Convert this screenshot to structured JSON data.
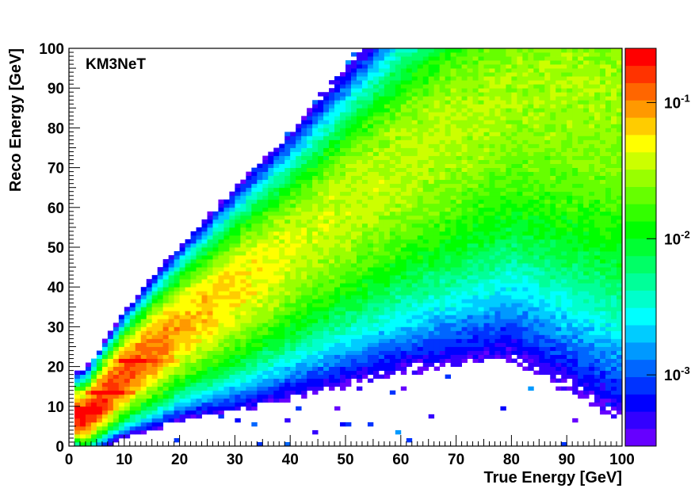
{
  "chart_data": {
    "type": "heatmap",
    "annotation": "KM3NeT",
    "xlabel": "True Energy [GeV]",
    "ylabel": "Reco Energy [GeV]",
    "xlim": [
      0,
      100
    ],
    "ylim": [
      0,
      100
    ],
    "x_ticks": [
      "0",
      "10",
      "20",
      "30",
      "40",
      "50",
      "60",
      "70",
      "80",
      "90",
      "100"
    ],
    "y_ticks": [
      "0",
      "10",
      "20",
      "30",
      "40",
      "50",
      "60",
      "70",
      "80",
      "90",
      "100"
    ],
    "bins": {
      "x": 100,
      "y": 100,
      "width_gev": 1
    },
    "z_scale": "log",
    "z_range": [
      0.0003,
      0.25
    ],
    "colorbar_ticks": [
      {
        "value": 0.1,
        "base": "10",
        "exp": "-1"
      },
      {
        "value": 0.01,
        "base": "10",
        "exp": "-2"
      },
      {
        "value": 0.001,
        "base": "10",
        "exp": "-3"
      }
    ],
    "palette": [
      "#6600ff",
      "#3300ff",
      "#0000ff",
      "#0033ff",
      "#0066ff",
      "#0099ff",
      "#00ccff",
      "#00ffff",
      "#00ffcc",
      "#00ff99",
      "#00ff66",
      "#00ff33",
      "#00ff00",
      "#33ff00",
      "#66ff00",
      "#99ff00",
      "#ccff00",
      "#ffff00",
      "#ffcc00",
      "#ff9900",
      "#ff6600",
      "#ff3300",
      "#ff0000"
    ],
    "ridges": [
      {
        "true_energy": 3,
        "reco_energy": 7,
        "relative_value": 0.2
      },
      {
        "true_energy": 10,
        "reco_energy": 18,
        "relative_value": 0.15
      },
      {
        "true_energy": 20,
        "reco_energy": 30,
        "relative_value": 0.08
      },
      {
        "true_energy": 40,
        "reco_energy": 50,
        "relative_value": 0.04
      },
      {
        "true_energy": 60,
        "reco_energy": 72,
        "relative_value": 0.035
      },
      {
        "true_energy": 80,
        "reco_energy": 90,
        "relative_value": 0.03
      }
    ],
    "banding": [
      {
        "reco_energy": 21.5,
        "true_energy_range": [
          3,
          20
        ]
      },
      {
        "reco_energy": 13.5,
        "true_energy_range": [
          1,
          12
        ]
      },
      {
        "reco_energy": 9,
        "true_energy_range": [
          1,
          6
        ]
      }
    ]
  }
}
